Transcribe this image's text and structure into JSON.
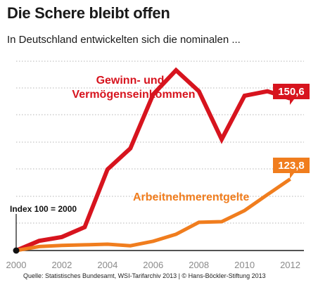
{
  "header": {
    "title": "Die Schere bleibt offen",
    "subtitle": "In Deutschland entwickelten sich die nominalen ..."
  },
  "footer": {
    "source": "Quelle: Statistisches Bundesamt, WSI-Tarifarchiv 2013 | © Hans-Böckler-Stiftung 2013"
  },
  "chart_data": {
    "type": "line",
    "x": [
      2000,
      2001,
      2002,
      2003,
      2004,
      2005,
      2006,
      2007,
      2008,
      2009,
      2010,
      2011,
      2012
    ],
    "xticks": [
      "2000",
      "2002",
      "2004",
      "2006",
      "2008",
      "2010",
      "2012"
    ],
    "xlim": [
      2000,
      2012.6
    ],
    "ylim": [
      100,
      163
    ],
    "grid": true,
    "series": [
      {
        "name": "Gewinn- und Vermögenseinkommen",
        "color": "#d7141e",
        "values": [
          100,
          103.2,
          104.5,
          107.8,
          127,
          134,
          152,
          160,
          153,
          137,
          151.5,
          153,
          150.6
        ],
        "end_label": "150,6"
      },
      {
        "name": "Arbeitnehmerentgelte",
        "color": "#f07d1e",
        "values": [
          100,
          101.3,
          101.7,
          101.9,
          102.1,
          101.6,
          103.1,
          105.4,
          109.4,
          109.6,
          113.3,
          118.6,
          123.8
        ],
        "end_label": "123,8"
      }
    ],
    "annotation": "Index 100 = 2000"
  }
}
